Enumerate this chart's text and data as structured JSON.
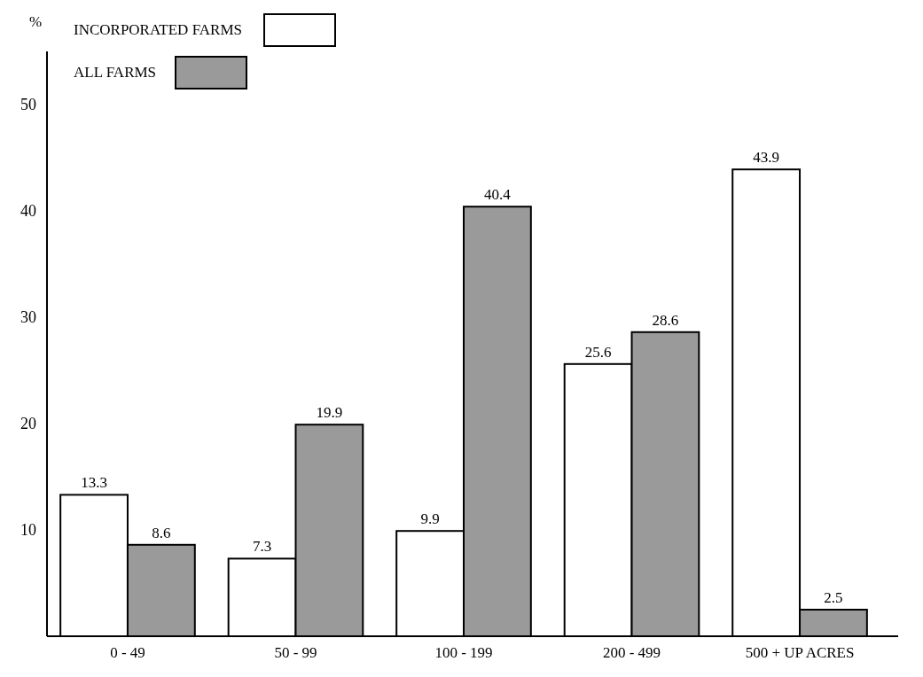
{
  "chart_data": {
    "type": "bar",
    "ylabel": "%",
    "categories": [
      "0 - 49",
      "50 - 99",
      "100 - 199",
      "200 - 499",
      "500 + UP ACRES"
    ],
    "series": [
      {
        "name": "INCORPORATED FARMS",
        "color": "#ffffff",
        "values": [
          13.3,
          7.3,
          9.9,
          25.6,
          43.9
        ]
      },
      {
        "name": "ALL FARMS",
        "color": "#9a9a9a",
        "values": [
          8.6,
          19.9,
          40.4,
          28.6,
          2.5
        ]
      }
    ],
    "ylim": [
      0,
      55
    ],
    "yticks": [
      10,
      20,
      30,
      40,
      50
    ],
    "data_labels": true,
    "legend": "top left",
    "grid": false
  }
}
